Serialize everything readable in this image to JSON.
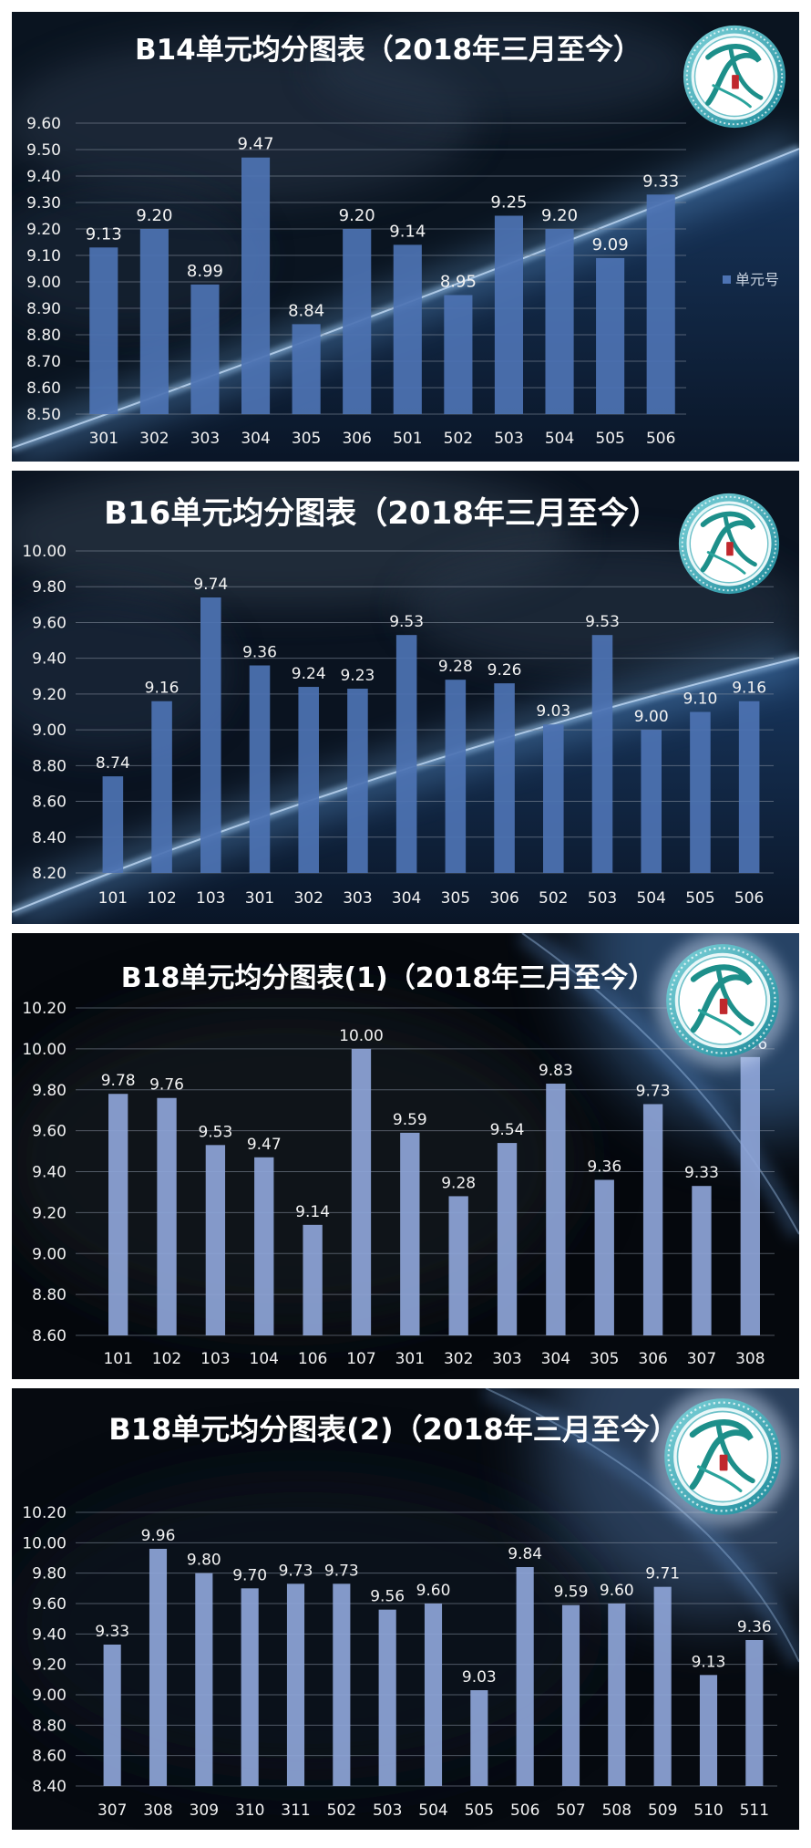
{
  "colors": {
    "page_background": "#ffffff",
    "bar_blue": "#4d73b3",
    "bar_lavender": "#8ea5d8",
    "label_text": "#f2f2f2",
    "legend_text": "#c9d3e0",
    "grid": "#8a94a3"
  },
  "icons": {
    "logo": "school-emblem-icon"
  },
  "chart_data": [
    {
      "type": "bar",
      "title": "B14单元均分图表（2018年三月至今）",
      "categories": [
        "301",
        "302",
        "303",
        "304",
        "305",
        "306",
        "501",
        "502",
        "503",
        "504",
        "505",
        "506"
      ],
      "values": [
        9.13,
        9.2,
        8.99,
        9.47,
        8.84,
        9.2,
        9.14,
        8.95,
        9.25,
        9.2,
        9.09,
        9.33
      ],
      "ylim": [
        8.5,
        9.6
      ],
      "yticks": [
        "9.60",
        "9.50",
        "9.40",
        "9.30",
        "9.20",
        "9.10",
        "9.00",
        "8.90",
        "8.80",
        "8.70",
        "8.60",
        "8.50"
      ],
      "legend": "单元号",
      "legend_position": "right",
      "grid": true
    },
    {
      "type": "bar",
      "title": "B16单元均分图表（2018年三月至今）",
      "categories": [
        "101",
        "102",
        "103",
        "301",
        "302",
        "303",
        "304",
        "305",
        "306",
        "502",
        "503",
        "504",
        "505",
        "506"
      ],
      "values": [
        8.74,
        9.16,
        9.74,
        9.36,
        9.24,
        9.23,
        9.53,
        9.28,
        9.26,
        9.03,
        9.53,
        9.0,
        9.1,
        9.16
      ],
      "ylim": [
        8.2,
        10.0
      ],
      "yticks": [
        "10.00",
        "9.80",
        "9.60",
        "9.40",
        "9.20",
        "9.00",
        "8.80",
        "8.60",
        "8.40",
        "8.20"
      ],
      "grid": true
    },
    {
      "type": "bar",
      "title": "B18单元均分图表(1)（2018年三月至今）",
      "categories": [
        "101",
        "102",
        "103",
        "104",
        "106",
        "107",
        "301",
        "302",
        "303",
        "304",
        "305",
        "306",
        "307",
        "308"
      ],
      "values": [
        9.78,
        9.76,
        9.53,
        9.47,
        9.14,
        10.0,
        9.59,
        9.28,
        9.54,
        9.83,
        9.36,
        9.73,
        9.33,
        9.96
      ],
      "ylim": [
        8.6,
        10.2
      ],
      "yticks": [
        "10.20",
        "10.00",
        "9.80",
        "9.60",
        "9.40",
        "9.20",
        "9.00",
        "8.80",
        "8.60"
      ],
      "grid": true
    },
    {
      "type": "bar",
      "title": "B18单元均分图表(2)（2018年三月至今）",
      "categories": [
        "307",
        "308",
        "309",
        "310",
        "311",
        "502",
        "503",
        "504",
        "505",
        "506",
        "507",
        "508",
        "509",
        "510",
        "511"
      ],
      "values": [
        9.33,
        9.96,
        9.8,
        9.7,
        9.73,
        9.73,
        9.56,
        9.6,
        9.03,
        9.84,
        9.59,
        9.6,
        9.71,
        9.13,
        9.36
      ],
      "ylim": [
        8.4,
        10.2
      ],
      "yticks": [
        "10.20",
        "10.00",
        "9.80",
        "9.60",
        "9.40",
        "9.20",
        "9.00",
        "8.80",
        "8.60",
        "8.40"
      ],
      "grid": true
    }
  ]
}
